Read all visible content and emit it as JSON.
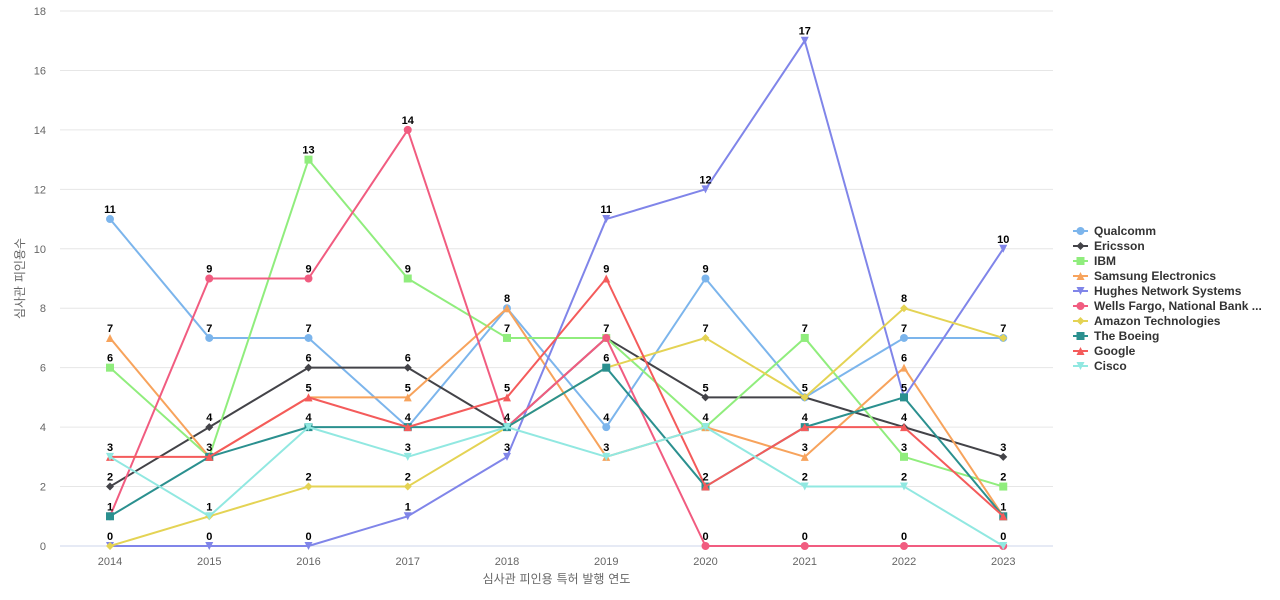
{
  "chart_data": {
    "type": "line",
    "title": "",
    "xlabel": "심사관 피인용 특허 발행 연도",
    "ylabel": "심사관 피인용수",
    "categories": [
      "2014",
      "2015",
      "2016",
      "2017",
      "2018",
      "2019",
      "2020",
      "2021",
      "2022",
      "2023"
    ],
    "ylim": [
      0,
      18
    ],
    "yticks": [
      0,
      2,
      4,
      6,
      8,
      10,
      12,
      14,
      16,
      18
    ],
    "grid": true,
    "legend_position": "right",
    "series": [
      {
        "name": "Qualcomm",
        "color": "#7cb5ec",
        "marker": "circle",
        "values": [
          11,
          7,
          7,
          4,
          8,
          4,
          9,
          5,
          7,
          7
        ]
      },
      {
        "name": "Ericsson",
        "color": "#434348",
        "marker": "diamond",
        "values": [
          2,
          4,
          6,
          6,
          4,
          7,
          5,
          5,
          4,
          3
        ]
      },
      {
        "name": "IBM",
        "color": "#90ed7d",
        "marker": "square",
        "values": [
          6,
          3,
          13,
          9,
          7,
          7,
          4,
          7,
          3,
          2
        ]
      },
      {
        "name": "Samsung Electronics",
        "color": "#f7a35c",
        "marker": "triangle",
        "values": [
          7,
          3,
          5,
          5,
          8,
          3,
          4,
          3,
          6,
          1
        ]
      },
      {
        "name": "Hughes Network Systems",
        "color": "#8085e9",
        "marker": "triangle-down",
        "values": [
          0,
          0,
          0,
          1,
          3,
          11,
          12,
          17,
          5,
          10
        ]
      },
      {
        "name": "Wells Fargo, National Bank ...",
        "color": "#f15c80",
        "marker": "circle",
        "values": [
          1,
          9,
          9,
          14,
          4,
          7,
          0,
          0,
          0,
          0
        ]
      },
      {
        "name": "Amazon Technologies",
        "color": "#e4d354",
        "marker": "diamond",
        "values": [
          0,
          1,
          2,
          2,
          4,
          6,
          7,
          5,
          8,
          7
        ]
      },
      {
        "name": "The Boeing",
        "color": "#2b908f",
        "marker": "square",
        "values": [
          1,
          3,
          4,
          4,
          4,
          6,
          2,
          4,
          5,
          1
        ]
      },
      {
        "name": "Google",
        "color": "#f45b5b",
        "marker": "triangle",
        "values": [
          3,
          3,
          5,
          4,
          5,
          9,
          2,
          4,
          4,
          1
        ]
      },
      {
        "name": "Cisco",
        "color": "#91e8e1",
        "marker": "triangle-down",
        "values": [
          3,
          1,
          4,
          3,
          4,
          3,
          4,
          2,
          2,
          0
        ]
      }
    ],
    "data_labels": [
      {
        "category": "2014",
        "texts": [
          "11",
          "7",
          "6",
          "3",
          "2",
          "1",
          "0"
        ]
      },
      {
        "category": "2015",
        "texts": [
          "9",
          "7",
          "4",
          "3",
          "1",
          "0"
        ]
      },
      {
        "category": "2016",
        "texts": [
          "13",
          "9",
          "7",
          "6",
          "5",
          "4",
          "2",
          "0"
        ]
      },
      {
        "category": "2017",
        "texts": [
          "14",
          "9",
          "6",
          "5",
          "4",
          "3",
          "2",
          "1"
        ]
      },
      {
        "category": "2018",
        "texts": [
          "8",
          "7",
          "5",
          "4",
          "3"
        ]
      },
      {
        "category": "2019",
        "texts": [
          "11",
          "9",
          "7",
          "6",
          "4",
          "3"
        ]
      },
      {
        "category": "2020",
        "texts": [
          "12",
          "9",
          "7",
          "5",
          "4",
          "2",
          "0"
        ]
      },
      {
        "category": "2021",
        "texts": [
          "17",
          "7",
          "5",
          "4",
          "3",
          "2",
          "0"
        ]
      },
      {
        "category": "2022",
        "texts": [
          "8",
          "7",
          "6",
          "5",
          "4",
          "3",
          "2",
          "0"
        ]
      },
      {
        "category": "2023",
        "texts": [
          "10",
          "7",
          "3",
          "2",
          "1",
          "0"
        ]
      }
    ]
  }
}
